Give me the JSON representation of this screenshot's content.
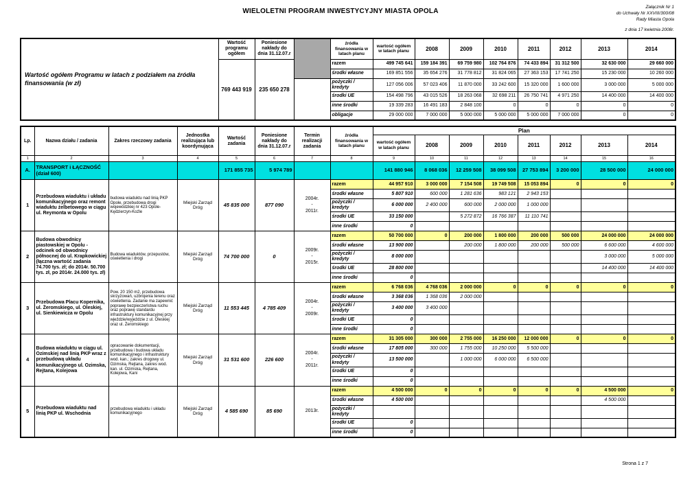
{
  "page": {
    "title": "WIELOLETNI  PROGRAM INWESTYCYJNY MIASTA OPOLA",
    "attachment": [
      "Załącznik Nr 1",
      "do Uchwały Nr XXVIII/300/08",
      "Rady Miasta Opola"
    ],
    "date_note": "z dnia 17 kwietnia 2008r.",
    "page_number": "Strona 1 z 7"
  },
  "colors": {
    "razem_row": "#ffff99",
    "section_row": "#00e0e0",
    "gray_cell": "#a8a8a8"
  },
  "summary_table": {
    "corner_label": "Wartość ogółem Programu w latach z podziałem na źródła finansowania (w zł)",
    "headers": {
      "program_total": "Wartość programu ogółem",
      "incurred": "Poniesione nakłady do dnia 31.12.07.r",
      "sources": "źródła finansowania w latach planu",
      "plan_total": "wartość ogółem w latach planu"
    },
    "years": [
      "2008",
      "2009",
      "2010",
      "2011",
      "2012",
      "2013",
      "2014"
    ],
    "program_total_value": "769 443 919",
    "incurred_value": "235 650 278",
    "rows": [
      {
        "label": "razem",
        "total": "499 745 641",
        "values": [
          "159 184 391",
          "69 759 980",
          "102 764 876",
          "74 433 894",
          "31 312 500",
          "32 630 000",
          "29 660 000"
        ]
      },
      {
        "label": "środki własne",
        "total": "169 851 556",
        "values": [
          "35 654 276",
          "31 778 812",
          "31 824 065",
          "27 363 153",
          "17 741 250",
          "15 230 000",
          "10 260 000"
        ]
      },
      {
        "label": "pożyczki / kredyty",
        "total": "127 056 006",
        "values": [
          "57 023 406",
          "11 870 000",
          "33 242 600",
          "15 320 000",
          "1 600 000",
          "3 000 000",
          "5 000 000"
        ]
      },
      {
        "label": "środki UE",
        "total": "154 498 796",
        "values": [
          "43 015 526",
          "18 263 068",
          "32 698 211",
          "26 750 741",
          "4 971 250",
          "14 400 000",
          "14 400 000"
        ]
      },
      {
        "label": "inne środki",
        "total": "19 339 283",
        "values": [
          "16 491 183",
          "2 848 100",
          "0",
          "0",
          "0",
          "0",
          "0"
        ]
      },
      {
        "label": "obligacje",
        "total": "29 000 000",
        "values": [
          "7 000 000",
          "5 000 000",
          "5 000 000",
          "5 000 000",
          "7 000 000",
          "0",
          "0"
        ]
      }
    ]
  },
  "main_table": {
    "headers": {
      "lp": "Lp.",
      "name": "Nazwa działu / zadania",
      "scope": "Zakres rzeczowy zadania",
      "unit": "Jednostka realizująca lub koordynująca",
      "value": "Wartość zadania",
      "incurred": "Poniesione nakłady do dnia 31.12.07.r",
      "term": "Termin realizacji zadania",
      "sources": "źródła finansowania w latach planu",
      "plan": "Plan",
      "plan_total": "wartość ogółem w latach planu",
      "years": [
        "2008",
        "2009",
        "2010",
        "2011",
        "2012",
        "2013",
        "2014"
      ]
    },
    "column_numbers": [
      "1",
      "2",
      "3",
      "4",
      "5",
      "6",
      "7",
      "8",
      "9",
      "10",
      "11",
      "12",
      "13",
      "14",
      "15",
      "16"
    ],
    "section": {
      "lp": "A.",
      "name": "TRANSPORT i ŁĄCZNOŚĆ (dział 600)",
      "value": "171 855 735",
      "incurred": "5 974 789",
      "plan_total": "141 880 946",
      "years": [
        "8 068 036",
        "12 259 508",
        "38 099 508",
        "27 753 894",
        "3 200 000",
        "28 500 000",
        "24 000 000"
      ]
    },
    "tasks": [
      {
        "lp": "1",
        "name": "Przebudowa wiaduktu i układu komunikacyjnego oraz remont wiaduktu żelbetowego w ciągu ul. Reymonta w Opolu",
        "scope": "budowa wiaduktu nad linią PKP Opole, przebudowa drogi wojewódzkiej nr 423 Opole-Kędzierzyn-Koźle",
        "unit": "Miejski Zarząd Dróg",
        "value": "45 835 000",
        "incurred": "877 090",
        "term": [
          "2004r.",
          "-",
          "2011r."
        ],
        "rows": [
          {
            "label": "razem",
            "total": "44 957 910",
            "values": [
              "3 000 000",
              "7 154 508",
              "19 749 508",
              "15 053 894",
              "0",
              "0",
              "0"
            ]
          },
          {
            "label": "środki własne",
            "total": "5 807 910",
            "values": [
              "600 000",
              "1 281 636",
              "983 121",
              "2 943 153",
              "",
              "",
              ""
            ]
          },
          {
            "label": "pożyczki / kredyty",
            "total": "6 000 000",
            "values": [
              "2 400 000",
              "600 000",
              "2 000 000",
              "1 000 000",
              "",
              "",
              ""
            ]
          },
          {
            "label": "środki UE",
            "total": "33 150 000",
            "values": [
              "",
              "5 272 872",
              "16 766 387",
              "11 110 741",
              "",
              "",
              ""
            ]
          },
          {
            "label": "inne środki",
            "total": "0",
            "values": [
              "",
              "",
              "",
              "",
              "",
              "",
              ""
            ]
          }
        ]
      },
      {
        "lp": "2",
        "name": "Budowa obwodnicy piastowskiej w Opolu - odcinek od obwodnicy północnej do ul. Krapkowickiej (łączna wartość zadania 74.700 tys. zł; do 2014r. 50.700 tys. zł, po 2014r. 24.000 tys. zł)",
        "scope": "Budowa wiaduktów, przepustów, oświetlenia i drogi",
        "unit": "Miejski Zarząd Dróg",
        "value": "74 700 000",
        "incurred": "0",
        "term": [
          "2009r.",
          "-",
          "2015r."
        ],
        "rows": [
          {
            "label": "razem",
            "total": "50 700 000",
            "values": [
              "0",
              "200 000",
              "1 800 000",
              "200 000",
              "500 000",
              "24 000 000",
              "24 000 000"
            ]
          },
          {
            "label": "środki własne",
            "total": "13 900 000",
            "values": [
              "",
              "200 000",
              "1 800 000",
              "200 000",
              "500 000",
              "6 600 000",
              "4 600 000"
            ]
          },
          {
            "label": "pożyczki / kredyty",
            "total": "8 000 000",
            "values": [
              "",
              "",
              "",
              "",
              "",
              "3 000 000",
              "5 000 000"
            ]
          },
          {
            "label": "środki UE",
            "total": "28 800 000",
            "values": [
              "",
              "",
              "",
              "",
              "",
              "14 400 000",
              "14 400 000"
            ]
          },
          {
            "label": "inne środki",
            "total": "0",
            "values": [
              "",
              "",
              "",
              "",
              "",
              "",
              ""
            ]
          }
        ]
      },
      {
        "lp": "3",
        "name": "Przebudowa Placu Kopernika, ul. Żeromskiego, ul. Oleskiej, ul. Sienkiewicza w Opolu",
        "scope": "Pow. 20 150 m2, przebudowa skrzyżowań, uzbrojenia terenu oraz oświetlenia. Zadanie ma zapewnić poprawę bezpieczeństwa ruchu oraz poprawę standardu infrastruktury komunikacyjnej przy wjeździe/wyjeździe z ul. Oleskiej oraz ul. Żeromskiego",
        "unit": "Miejski Zarząd Dróg",
        "value": "11 553 445",
        "incurred": "4 785 409",
        "term": [
          "2004r.",
          "-",
          "2009r."
        ],
        "rows": [
          {
            "label": "razem",
            "total": "6 768 036",
            "values": [
              "4 768 036",
              "2 000 000",
              "0",
              "0",
              "0",
              "0",
              "0"
            ]
          },
          {
            "label": "środki własne",
            "total": "3 368 036",
            "values": [
              "1 368 036",
              "2 000 000",
              "",
              "",
              "",
              "",
              ""
            ]
          },
          {
            "label": "pożyczki / kredyty",
            "total": "3 400 000",
            "values": [
              "3 400 000",
              "",
              "",
              "",
              "",
              "",
              ""
            ]
          },
          {
            "label": "środki UE",
            "total": "0",
            "values": [
              "",
              "",
              "",
              "",
              "",
              "",
              ""
            ]
          },
          {
            "label": "inne środki",
            "total": "0",
            "values": [
              "",
              "",
              "",
              "",
              "",
              "",
              ""
            ]
          }
        ]
      },
      {
        "lp": "4",
        "name": "Budowa wiaduktu w ciągu ul. Ozimskiej nad linią PKP wraz z przebudową układu komunikacyjnego ul. Ozimska, Rejtana, Kolejowa",
        "scope": "opracowanie dokumentacji, przebudowa i budowa układu komunikacyjnego i infrastruktury wod. kan.; zakres drogowy ul. Ozimska, Rejtana, zakres wod. kan. ul. Ozimska, Rejtana, Kolejowa, Kani",
        "unit": "Miejski Zarząd Dróg",
        "value": "31 531 600",
        "incurred": "226 600",
        "term": [
          "2004r.",
          "-",
          "2011r."
        ],
        "rows": [
          {
            "label": "razem",
            "total": "31 305 000",
            "values": [
              "300 000",
              "2 755 000",
              "16 250 000",
              "12 000 000",
              "0",
              "0",
              "0"
            ]
          },
          {
            "label": "środki własne",
            "total": "17 805 000",
            "values": [
              "300 000",
              "1 755 000",
              "10 250 000",
              "5 500 000",
              "",
              "",
              ""
            ]
          },
          {
            "label": "pożyczki / kredyty",
            "total": "13 500 000",
            "values": [
              "",
              "1 000 000",
              "6 000 000",
              "6 500 000",
              "",
              "",
              ""
            ]
          },
          {
            "label": "środki UE",
            "total": "0",
            "values": [
              "",
              "",
              "",
              "",
              "",
              "",
              ""
            ]
          },
          {
            "label": "inne środki",
            "total": "0",
            "values": [
              "",
              "",
              "",
              "",
              "",
              "",
              ""
            ]
          }
        ]
      },
      {
        "lp": "5",
        "name": "Przebudowa wiaduktu nad linią PKP ul. Wschodnia",
        "scope": "przebudowa wiaduktu i układu komunikacyjnego",
        "unit": "Miejski Zarząd Dróg",
        "value": "4 585 690",
        "incurred": "85 690",
        "term": [
          "2013r."
        ],
        "rows": [
          {
            "label": "razem",
            "total": "4 500 000",
            "values": [
              "0",
              "0",
              "0",
              "0",
              "0",
              "4 500 000",
              "0"
            ]
          },
          {
            "label": "środki własne",
            "total": "4 500 000",
            "values": [
              "",
              "",
              "",
              "",
              "",
              "4 500 000",
              ""
            ]
          },
          {
            "label": "pożyczki / kredyty",
            "total": "",
            "values": [
              "",
              "",
              "",
              "",
              "",
              "",
              ""
            ]
          },
          {
            "label": "środki UE",
            "total": "0",
            "values": [
              "",
              "",
              "",
              "",
              "",
              "",
              ""
            ]
          },
          {
            "label": "inne środki",
            "total": "0",
            "values": [
              "",
              "",
              "",
              "",
              "",
              "",
              ""
            ]
          }
        ]
      }
    ]
  }
}
